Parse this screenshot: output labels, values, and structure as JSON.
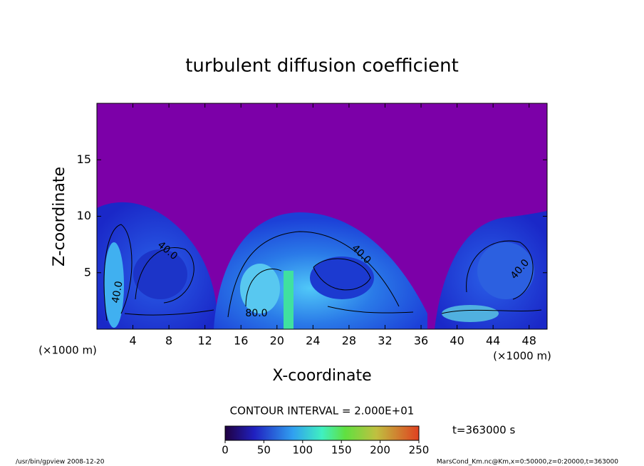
{
  "chart_data": {
    "type": "contour",
    "title": "turbulent diffusion coefficient",
    "x_label": "X-coordinate",
    "y_label": "Z-coordinate",
    "x_unit": "(×1000 m)",
    "y_unit": "(×1000 m)",
    "xlim": [
      0,
      50
    ],
    "xticks": [
      4,
      8,
      12,
      16,
      20,
      24,
      28,
      32,
      36,
      40,
      44,
      48
    ],
    "ylim": [
      0,
      20
    ],
    "yticks": [
      5,
      10,
      15
    ],
    "contour_interval": "CONTOUR INTERVAL = 2.000E+01",
    "contour_labels": [
      {
        "value": 40,
        "label": "40.0"
      },
      {
        "value": 40,
        "label": "40.0"
      },
      {
        "value": 80,
        "label": "80.0"
      },
      {
        "value": 40,
        "label": "40.0"
      },
      {
        "value": 40,
        "label": "40.0"
      }
    ],
    "colorbar": {
      "lim": [
        0,
        250
      ],
      "ticks": [
        0,
        50,
        100,
        150,
        200,
        250
      ]
    },
    "time_label": "t=363000 s"
  },
  "footer": {
    "left": "/usr/bin/gpview  2008-12-20",
    "right": "MarsCond_Km.nc@Km,x=0:50000,z=0:20000,t=363000"
  }
}
